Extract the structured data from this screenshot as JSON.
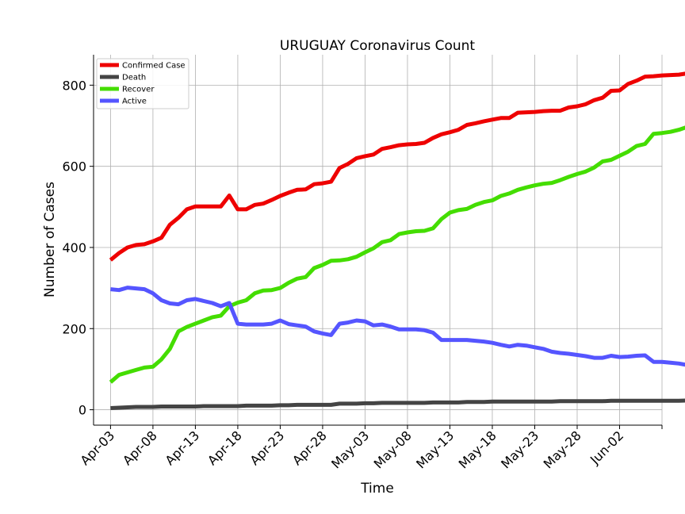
{
  "chart_data": {
    "type": "line",
    "title": "URUGUAY Coronavirus Count",
    "xlabel": "Time",
    "ylabel": "Number of Cases",
    "x_start": "2020-04-03",
    "x_end": "2020-06-05",
    "xlim": [
      "2020-04-01",
      "2020-06-07"
    ],
    "ylim": [
      -38,
      875
    ],
    "x_ticks": [
      {
        "date": "2020-04-03",
        "label": "Apr-03"
      },
      {
        "date": "2020-04-08",
        "label": "Apr-08"
      },
      {
        "date": "2020-04-13",
        "label": "Apr-13"
      },
      {
        "date": "2020-04-18",
        "label": "Apr-18"
      },
      {
        "date": "2020-04-23",
        "label": "Apr-23"
      },
      {
        "date": "2020-04-28",
        "label": "Apr-28"
      },
      {
        "date": "2020-05-03",
        "label": "May-03"
      },
      {
        "date": "2020-05-08",
        "label": "May-08"
      },
      {
        "date": "2020-05-13",
        "label": "May-13"
      },
      {
        "date": "2020-05-18",
        "label": "May-18"
      },
      {
        "date": "2020-05-23",
        "label": "May-23"
      },
      {
        "date": "2020-05-28",
        "label": "May-28"
      },
      {
        "date": "2020-06-02",
        "label": "Jun-02"
      },
      {
        "date": "2020-06-07",
        "label": ""
      }
    ],
    "y_ticks": [
      {
        "value": 0,
        "label": "0"
      },
      {
        "value": 200,
        "label": "200"
      },
      {
        "value": 400,
        "label": "400"
      },
      {
        "value": 600,
        "label": "600"
      },
      {
        "value": 800,
        "label": "800"
      }
    ],
    "grid": true,
    "legend_position": "top-left",
    "series": [
      {
        "name": "Confirmed Case",
        "color": "#ee0000",
        "values": [
          369,
          386,
          400,
          406,
          408,
          415,
          424,
          456,
          473,
          494,
          501,
          501,
          501,
          501,
          528,
          494,
          494,
          505,
          508,
          517,
          527,
          535,
          542,
          543,
          556,
          558,
          562,
          596,
          606,
          620,
          625,
          629,
          643,
          647,
          652,
          654,
          655,
          658,
          670,
          679,
          684,
          690,
          702,
          706,
          711,
          715,
          719,
          719,
          732,
          733,
          734,
          736,
          737,
          737,
          745,
          748,
          753,
          763,
          769,
          786,
          787,
          803,
          811,
          821,
          822,
          824,
          825,
          826,
          829,
          832
        ]
      },
      {
        "name": "Death",
        "color": "#444444",
        "values": [
          4,
          5,
          6,
          7,
          7,
          7,
          8,
          8,
          8,
          8,
          8,
          9,
          9,
          9,
          9,
          9,
          10,
          10,
          10,
          10,
          11,
          11,
          12,
          12,
          12,
          12,
          12,
          15,
          15,
          15,
          16,
          16,
          17,
          17,
          17,
          17,
          17,
          17,
          18,
          18,
          18,
          18,
          19,
          19,
          19,
          20,
          20,
          20,
          20,
          20,
          20,
          20,
          20,
          21,
          21,
          21,
          21,
          21,
          21,
          22,
          22,
          22,
          22,
          22,
          22,
          22,
          22,
          22,
          23,
          23
        ]
      },
      {
        "name": "Recover",
        "color": "#44dd00",
        "values": [
          68,
          86,
          92,
          98,
          104,
          106,
          124,
          150,
          193,
          204,
          212,
          220,
          228,
          232,
          255,
          264,
          270,
          287,
          294,
          295,
          300,
          313,
          323,
          327,
          349,
          357,
          367,
          368,
          371,
          377,
          388,
          398,
          413,
          418,
          433,
          437,
          440,
          441,
          447,
          470,
          486,
          492,
          495,
          505,
          512,
          516,
          527,
          533,
          542,
          548,
          553,
          557,
          559,
          566,
          574,
          581,
          587,
          597,
          612,
          616,
          626,
          636,
          650,
          655,
          680,
          682,
          685,
          690,
          697,
          710
        ]
      },
      {
        "name": "Active",
        "color": "#5555ff",
        "values": [
          297,
          295,
          301,
          299,
          297,
          287,
          270,
          262,
          260,
          270,
          273,
          268,
          263,
          255,
          263,
          212,
          210,
          210,
          210,
          212,
          220,
          211,
          208,
          205,
          193,
          188,
          184,
          212,
          215,
          220,
          218,
          208,
          210,
          205,
          198,
          198,
          198,
          196,
          190,
          172,
          172,
          172,
          172,
          170,
          168,
          165,
          160,
          156,
          160,
          158,
          154,
          150,
          143,
          140,
          138,
          135,
          132,
          128,
          128,
          133,
          130,
          131,
          133,
          134,
          118,
          118,
          116,
          114,
          110,
          105
        ]
      }
    ]
  }
}
